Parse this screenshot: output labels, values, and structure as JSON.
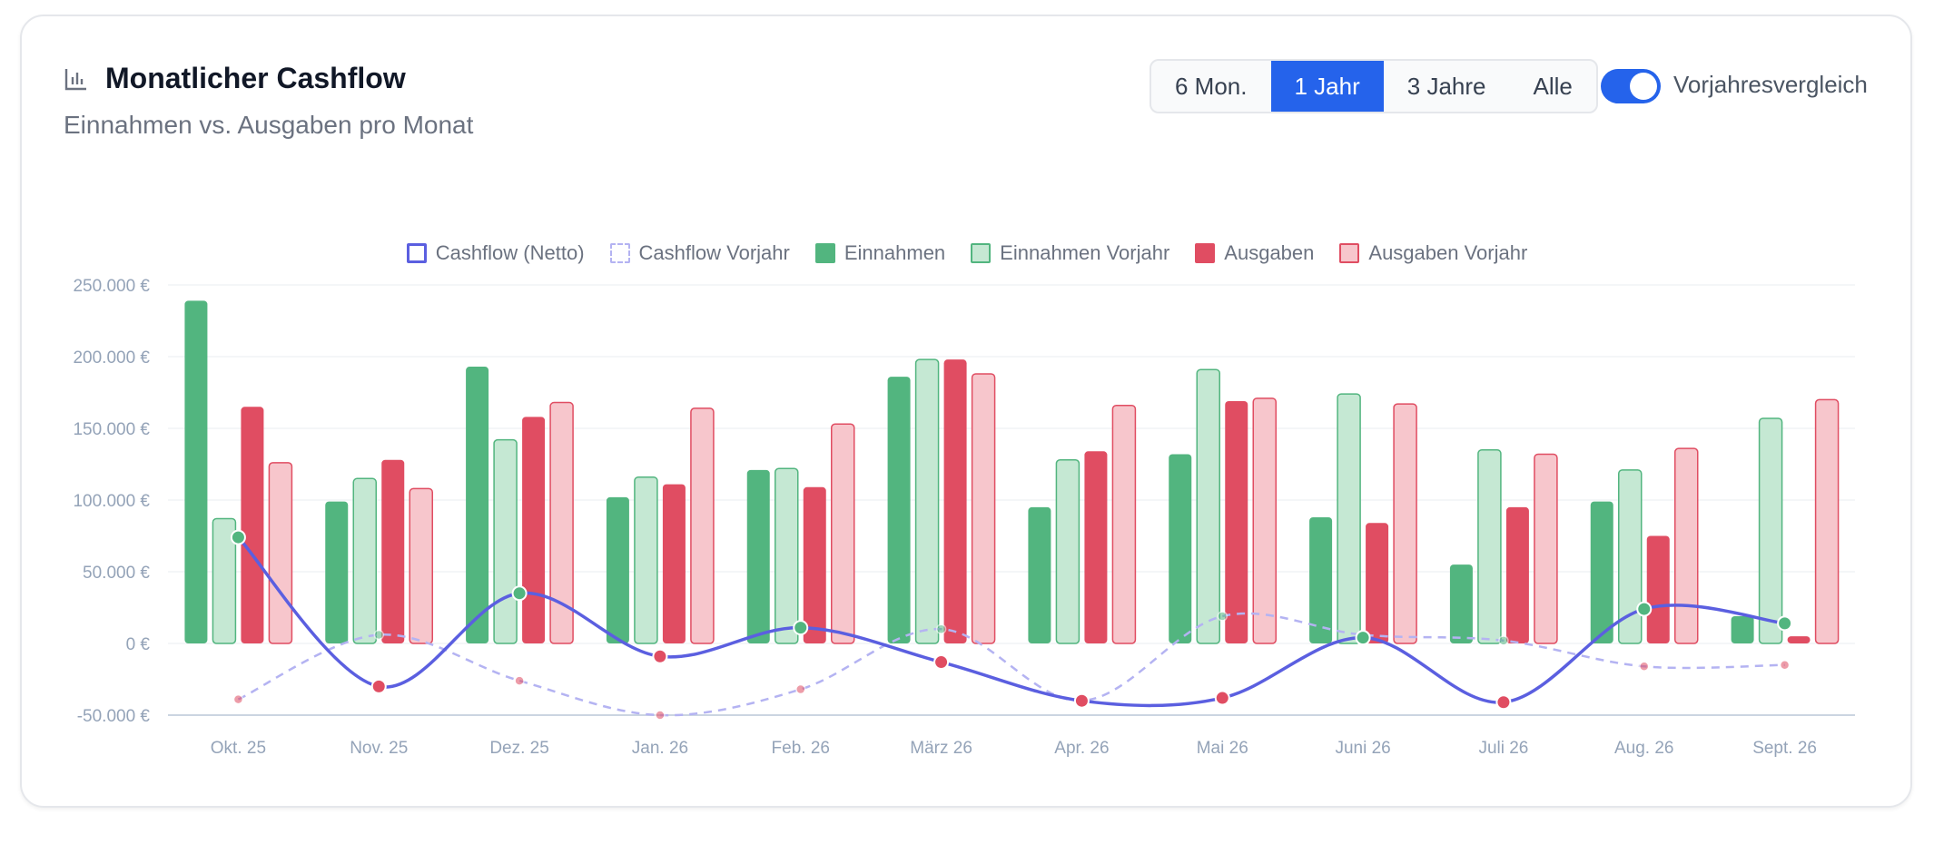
{
  "header": {
    "title": "Monatlicher Cashflow",
    "subtitle": "Einnahmen vs. Ausgaben pro Monat"
  },
  "range_selector": {
    "options": [
      "6 Mon.",
      "1 Jahr",
      "3 Jahre",
      "Alle"
    ],
    "selected": "1 Jahr"
  },
  "comparison_toggle": {
    "label": "Vorjahresvergleich",
    "on": true
  },
  "colors": {
    "accent": "#2563eb",
    "cashflow": "#5b5fe0",
    "cashflow_prev": "#b4b3f2",
    "income": "#52b57f",
    "income_prev_fill": "#c5e8d3",
    "income_prev_stroke": "#52b57f",
    "expense": "#e04d62",
    "expense_prev_fill": "#f7c6cc",
    "expense_prev_stroke": "#e04d62",
    "axis_text": "#94a3b8"
  },
  "chart_data": {
    "type": "bar",
    "categories": [
      "Okt. 25",
      "Nov. 25",
      "Dez. 25",
      "Jan. 26",
      "Feb. 26",
      "März 26",
      "Apr. 26",
      "Mai 26",
      "Juni 26",
      "Juli 26",
      "Aug. 26",
      "Sept. 26"
    ],
    "series": [
      {
        "name": "Cashflow (Netto)",
        "kind": "line",
        "values": [
          74000,
          -30000,
          35000,
          -9000,
          11000,
          -13000,
          -40000,
          -38000,
          4000,
          -41000,
          24000,
          14000
        ]
      },
      {
        "name": "Cashflow Vorjahr",
        "kind": "line-dashed",
        "values": [
          -39000,
          6000,
          -26000,
          -50000,
          -32000,
          10000,
          -40000,
          19000,
          6000,
          2000,
          -16000,
          -15000
        ]
      },
      {
        "name": "Einnahmen",
        "kind": "bar",
        "values": [
          239000,
          99000,
          193000,
          102000,
          121000,
          186000,
          95000,
          132000,
          88000,
          55000,
          99000,
          19000
        ]
      },
      {
        "name": "Einnahmen Vorjahr",
        "kind": "bar-prev",
        "values": [
          87000,
          115000,
          142000,
          116000,
          122000,
          198000,
          128000,
          191000,
          174000,
          135000,
          121000,
          157000
        ]
      },
      {
        "name": "Ausgaben",
        "kind": "bar",
        "values": [
          165000,
          128000,
          158000,
          111000,
          109000,
          198000,
          134000,
          169000,
          84000,
          95000,
          75000,
          5000
        ]
      },
      {
        "name": "Ausgaben Vorjahr",
        "kind": "bar-prev",
        "values": [
          126000,
          108000,
          168000,
          164000,
          153000,
          188000,
          166000,
          171000,
          167000,
          132000,
          136000,
          170000
        ]
      }
    ],
    "y_ticks": [
      "250.000 €",
      "200.000 €",
      "150.000 €",
      "100.000 €",
      "50.000 €",
      "0 €",
      "-50.000 €"
    ],
    "ylim": [
      -50000,
      250000
    ],
    "grid": true,
    "legend_position": "top-center"
  }
}
